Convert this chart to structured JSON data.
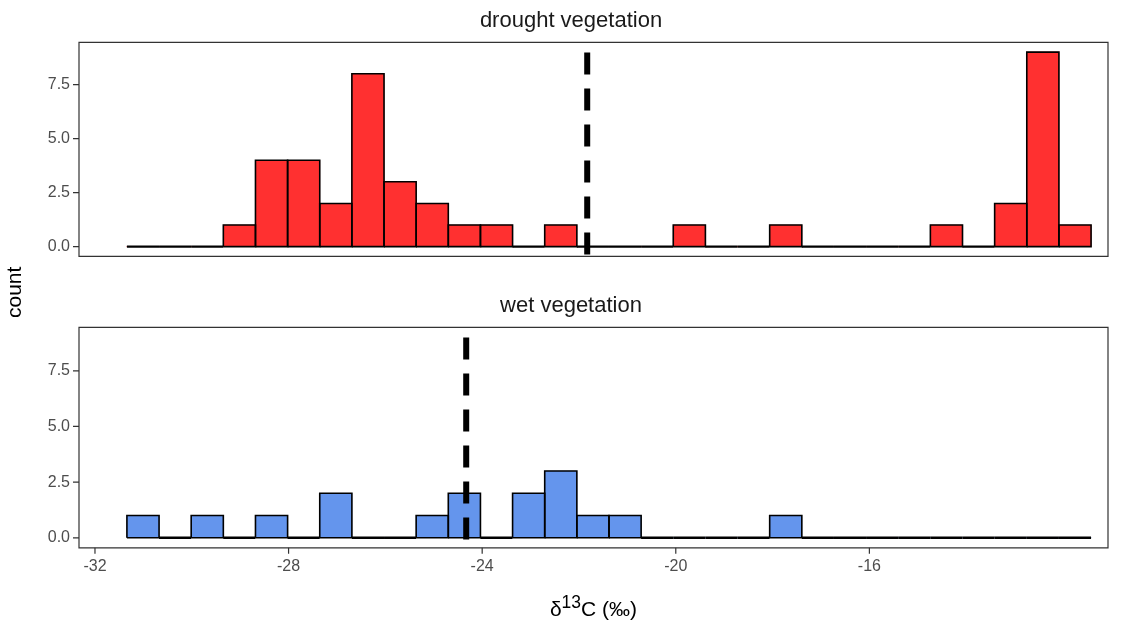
{
  "chart_data": [
    {
      "type": "histogram",
      "title": "drought vegetation",
      "ylabel": "count",
      "bins": [
        -31.34,
        -30.676,
        -30.012,
        -29.348,
        -28.684,
        -28.02,
        -27.356,
        -26.692,
        -26.028,
        -25.364,
        -24.7,
        -24.036,
        -23.372,
        -22.708,
        -22.044,
        -21.38,
        -20.716,
        -20.052,
        -19.388,
        -18.724,
        -18.06,
        -17.396,
        -16.732,
        -16.068,
        -15.404,
        -14.74,
        -14.076,
        -13.412,
        -12.748,
        -12.084,
        -11.42
      ],
      "values": [
        0,
        0,
        0,
        1,
        4,
        4,
        2,
        8,
        3,
        2,
        1,
        1,
        0,
        1,
        0,
        0,
        0,
        1,
        0,
        0,
        1,
        0,
        0,
        0,
        0,
        1,
        0,
        2,
        9,
        1
      ],
      "color": "#ff3030",
      "xlim": [
        -32.33,
        -11.07
      ],
      "xticks": [
        -32,
        -28,
        -24,
        -20,
        -16
      ],
      "ylim": [
        -0.45,
        9.45
      ],
      "yticks": [
        {
          "value": 0,
          "label": "0.0"
        },
        {
          "value": 2.5,
          "label": "2.5"
        },
        {
          "value": 5,
          "label": "5.0"
        },
        {
          "value": 7.5,
          "label": "7.5"
        }
      ],
      "ref_lines": [
        {
          "axis": "x",
          "value": -21.83,
          "color": "#000000",
          "line_style": "dashed"
        }
      ],
      "tick_labels": "y",
      "grid": false,
      "legend": false
    },
    {
      "type": "histogram",
      "title": "wet vegetation",
      "xlabel": "δ$^{13}$C (‰)",
      "bins": [
        -31.34,
        -30.676,
        -30.012,
        -29.348,
        -28.684,
        -28.02,
        -27.356,
        -26.692,
        -26.028,
        -25.364,
        -24.7,
        -24.036,
        -23.372,
        -22.708,
        -22.044,
        -21.38,
        -20.716,
        -20.052,
        -19.388,
        -18.724,
        -18.06,
        -17.396,
        -16.732,
        -16.068,
        -15.404,
        -14.74,
        -14.076,
        -13.412,
        -12.748,
        -12.084,
        -11.42
      ],
      "values": [
        1,
        0,
        1,
        0,
        1,
        0,
        2,
        0,
        0,
        1,
        2,
        0,
        2,
        3,
        1,
        1,
        0,
        0,
        0,
        0,
        1,
        0,
        0,
        0,
        0,
        0,
        0,
        0,
        0,
        0
      ],
      "color": "#6495ed",
      "xlim": [
        -32.33,
        -11.07
      ],
      "xticks": [
        -32,
        -28,
        -24,
        -20,
        -16
      ],
      "ylim": [
        -0.45,
        9.45
      ],
      "yticks": [
        {
          "value": 0,
          "label": "0.0"
        },
        {
          "value": 2.5,
          "label": "2.5"
        },
        {
          "value": 5,
          "label": "5.0"
        },
        {
          "value": 7.5,
          "label": "7.5"
        }
      ],
      "ref_lines": [
        {
          "axis": "x",
          "value": -24.33,
          "color": "#000000",
          "line_style": "dashed"
        }
      ],
      "grid": false,
      "legend": false
    }
  ]
}
